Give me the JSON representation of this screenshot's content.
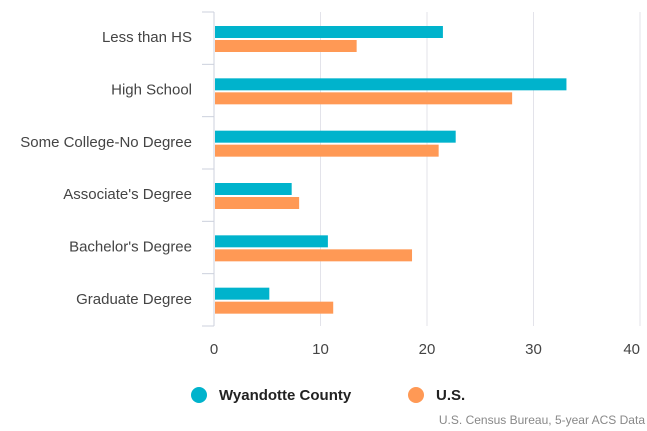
{
  "chart_data": {
    "type": "bar",
    "orientation": "horizontal",
    "categories": [
      "Less than HS",
      "High School",
      "Some College-No Degree",
      "Associate's Degree",
      "Bachelor's Degree",
      "Graduate Degree"
    ],
    "series": [
      {
        "name": "Wyandotte County",
        "color": "#00b3cc",
        "values": [
          21.4,
          33.0,
          22.6,
          7.2,
          10.6,
          5.1
        ]
      },
      {
        "name": "U.S.",
        "color": "#ff9955",
        "values": [
          13.3,
          27.9,
          21.0,
          7.9,
          18.5,
          11.1
        ]
      }
    ],
    "xlim": [
      0,
      40
    ],
    "xticks": [
      0,
      10,
      20,
      30,
      40
    ],
    "grid": true,
    "source": "U.S. Census Bureau, 5-year ACS Data"
  }
}
